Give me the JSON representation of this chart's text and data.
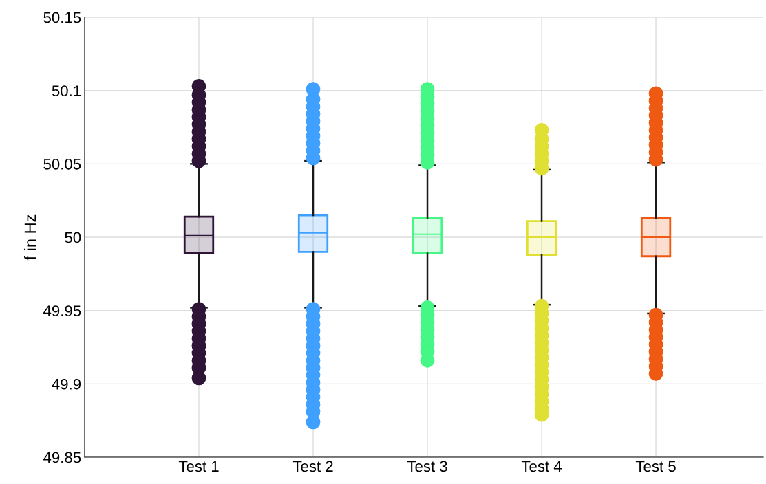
{
  "chart_data": {
    "type": "box",
    "ylabel": "f in Hz",
    "categories": [
      "Test 1",
      "Test 2",
      "Test 3",
      "Test 4",
      "Test 5"
    ],
    "colors": [
      "#2e1437",
      "#3fa0ff",
      "#45f785",
      "#e0df33",
      "#ee5a12"
    ],
    "boxes": [
      {
        "low": 49.952,
        "q1": 49.989,
        "median": 50.001,
        "q3": 50.014,
        "high": 50.05,
        "outliers": [
          50.052,
          50.057,
          50.062,
          50.067,
          50.072,
          50.077,
          50.082,
          50.087,
          50.092,
          50.097,
          50.103,
          49.951,
          49.946,
          49.941,
          49.936,
          49.931,
          49.926,
          49.921,
          49.916,
          49.911,
          49.904
        ]
      },
      {
        "low": 49.952,
        "q1": 49.99,
        "median": 50.003,
        "q3": 50.015,
        "high": 50.052,
        "outliers": [
          50.054,
          50.059,
          50.064,
          50.069,
          50.074,
          50.079,
          50.084,
          50.089,
          50.094,
          50.101,
          49.951,
          49.946,
          49.941,
          49.936,
          49.931,
          49.926,
          49.921,
          49.916,
          49.911,
          49.906,
          49.901,
          49.896,
          49.891,
          49.886,
          49.881,
          49.874
        ]
      },
      {
        "low": 49.953,
        "q1": 49.989,
        "median": 50.002,
        "q3": 50.013,
        "high": 50.049,
        "outliers": [
          50.051,
          50.056,
          50.061,
          50.066,
          50.071,
          50.076,
          50.081,
          50.086,
          50.091,
          50.096,
          50.101,
          49.952,
          49.947,
          49.942,
          49.937,
          49.932,
          49.927,
          49.922,
          49.916
        ]
      },
      {
        "low": 49.954,
        "q1": 49.988,
        "median": 50.0,
        "q3": 50.011,
        "high": 50.046,
        "outliers": [
          50.047,
          50.052,
          50.057,
          50.062,
          50.067,
          50.073,
          49.953,
          49.948,
          49.943,
          49.938,
          49.933,
          49.928,
          49.923,
          49.918,
          49.913,
          49.908,
          49.903,
          49.898,
          49.893,
          49.888,
          49.883,
          49.879
        ]
      },
      {
        "low": 49.948,
        "q1": 49.987,
        "median": 50.0,
        "q3": 50.013,
        "high": 50.051,
        "outliers": [
          50.053,
          50.058,
          50.063,
          50.068,
          50.073,
          50.078,
          50.083,
          50.088,
          50.093,
          50.098,
          49.947,
          49.942,
          49.937,
          49.932,
          49.927,
          49.922,
          49.917,
          49.912,
          49.907
        ]
      }
    ],
    "ylim": [
      49.85,
      50.15
    ],
    "yticks": [
      49.85,
      49.9,
      49.95,
      50,
      50.05,
      50.1,
      50.15
    ],
    "grid": true
  }
}
